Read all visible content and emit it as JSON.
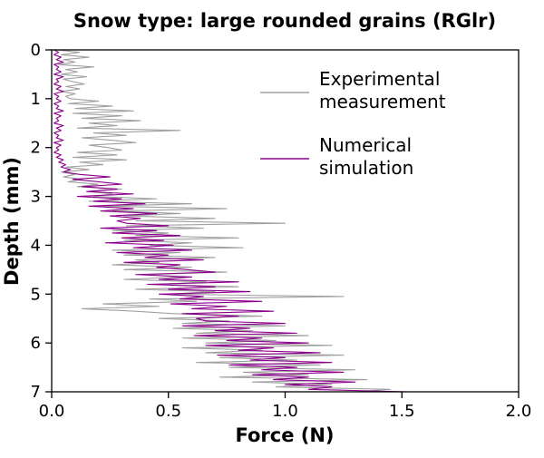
{
  "chart_data": {
    "type": "line",
    "title": "Snow type: large rounded grains (RGlr)",
    "xlabel": "Force (N)",
    "ylabel": "Depth (mm)",
    "xlim": [
      0,
      2.0
    ],
    "ylim": [
      0,
      7
    ],
    "y_axis_inverted": true,
    "grid": false,
    "legend_position": "upper right",
    "x_ticks": [
      {
        "v": 0.0,
        "label": "0.0"
      },
      {
        "v": 0.5,
        "label": "0.5"
      },
      {
        "v": 1.0,
        "label": "1.0"
      },
      {
        "v": 1.5,
        "label": "1.5"
      },
      {
        "v": 2.0,
        "label": "2.0"
      }
    ],
    "y_ticks": [
      {
        "v": 0,
        "label": "0"
      },
      {
        "v": 1,
        "label": "1"
      },
      {
        "v": 2,
        "label": "2"
      },
      {
        "v": 3,
        "label": "3"
      },
      {
        "v": 4,
        "label": "4"
      },
      {
        "v": 5,
        "label": "5"
      },
      {
        "v": 6,
        "label": "6"
      },
      {
        "v": 7,
        "label": "7"
      }
    ],
    "depth_start": 0,
    "depth_step_mm": 0.05,
    "series": [
      {
        "name": "Experimental measurement",
        "label_lines": [
          "Experimental",
          "measurement"
        ],
        "color": "#a0a0a0",
        "values": [
          0.02,
          0.12,
          0.04,
          0.16,
          0.05,
          0.1,
          0.03,
          0.18,
          0.06,
          0.11,
          0.04,
          0.15,
          0.05,
          0.09,
          0.14,
          0.06,
          0.12,
          0.04,
          0.1,
          0.06,
          0.08,
          0.2,
          0.07,
          0.26,
          0.1,
          0.35,
          0.09,
          0.3,
          0.13,
          0.38,
          0.16,
          0.28,
          0.11,
          0.55,
          0.18,
          0.32,
          0.13,
          0.26,
          0.36,
          0.16,
          0.24,
          0.3,
          0.11,
          0.28,
          0.09,
          0.32,
          0.12,
          0.22,
          0.06,
          0.16,
          0.04,
          0.1,
          0.05,
          0.13,
          0.07,
          0.2,
          0.11,
          0.3,
          0.16,
          0.26,
          0.18,
          0.45,
          0.16,
          0.6,
          0.22,
          0.75,
          0.26,
          0.55,
          0.31,
          0.7,
          0.36,
          1.0,
          0.32,
          0.65,
          0.26,
          0.5,
          0.36,
          0.8,
          0.31,
          0.6,
          0.42,
          0.82,
          0.26,
          0.55,
          0.31,
          0.7,
          0.36,
          0.46,
          0.26,
          0.6,
          0.31,
          0.75,
          0.41,
          0.56,
          0.31,
          0.66,
          0.46,
          0.8,
          0.36,
          0.7,
          0.5,
          1.25,
          0.42,
          0.62,
          0.22,
          0.46,
          0.13,
          0.36,
          0.52,
          0.9,
          0.46,
          0.76,
          0.56,
          1.0,
          0.52,
          0.86,
          0.62,
          1.1,
          0.56,
          0.96,
          0.66,
          1.2,
          0.56,
          0.9,
          0.66,
          1.25,
          0.72,
          1.05,
          0.62,
          1.15,
          0.76,
          1.3,
          0.82,
          1.1,
          0.72,
          1.35,
          0.86,
          1.2,
          0.96,
          1.45,
          1.3
        ]
      },
      {
        "name": "Numerical simulation",
        "label_lines": [
          "Numerical",
          "simulation"
        ],
        "color": "#8b008b",
        "values": [
          0.01,
          0.03,
          0.01,
          0.04,
          0.02,
          0.05,
          0.01,
          0.03,
          0.02,
          0.04,
          0.01,
          0.05,
          0.02,
          0.03,
          0.01,
          0.04,
          0.02,
          0.05,
          0.01,
          0.03,
          0.02,
          0.04,
          0.01,
          0.03,
          0.02,
          0.05,
          0.01,
          0.04,
          0.02,
          0.03,
          0.01,
          0.05,
          0.02,
          0.04,
          0.01,
          0.03,
          0.02,
          0.05,
          0.01,
          0.04,
          0.02,
          0.03,
          0.01,
          0.04,
          0.02,
          0.05,
          0.03,
          0.06,
          0.04,
          0.08,
          0.05,
          0.12,
          0.25,
          0.09,
          0.2,
          0.3,
          0.13,
          0.28,
          0.15,
          0.35,
          0.11,
          0.3,
          0.18,
          0.4,
          0.16,
          0.35,
          0.21,
          0.45,
          0.25,
          0.38,
          0.28,
          0.32,
          0.5,
          0.21,
          0.45,
          0.26,
          0.55,
          0.3,
          0.48,
          0.23,
          0.52,
          0.35,
          0.6,
          0.28,
          0.5,
          0.4,
          0.65,
          0.31,
          0.55,
          0.45,
          0.58,
          0.7,
          0.36,
          0.6,
          0.46,
          0.8,
          0.41,
          0.7,
          0.5,
          0.85,
          0.46,
          0.65,
          0.55,
          0.9,
          0.51,
          0.75,
          0.6,
          0.95,
          0.56,
          0.8,
          0.62,
          0.66,
          1.0,
          0.56,
          0.85,
          0.7,
          1.05,
          0.61,
          0.9,
          0.75,
          1.1,
          0.66,
          0.95,
          0.8,
          1.15,
          0.71,
          1.0,
          0.85,
          1.2,
          0.76,
          1.05,
          0.9,
          1.25,
          0.86,
          1.1,
          0.95,
          1.3,
          1.0,
          1.2,
          1.1,
          1.52
        ]
      }
    ]
  }
}
